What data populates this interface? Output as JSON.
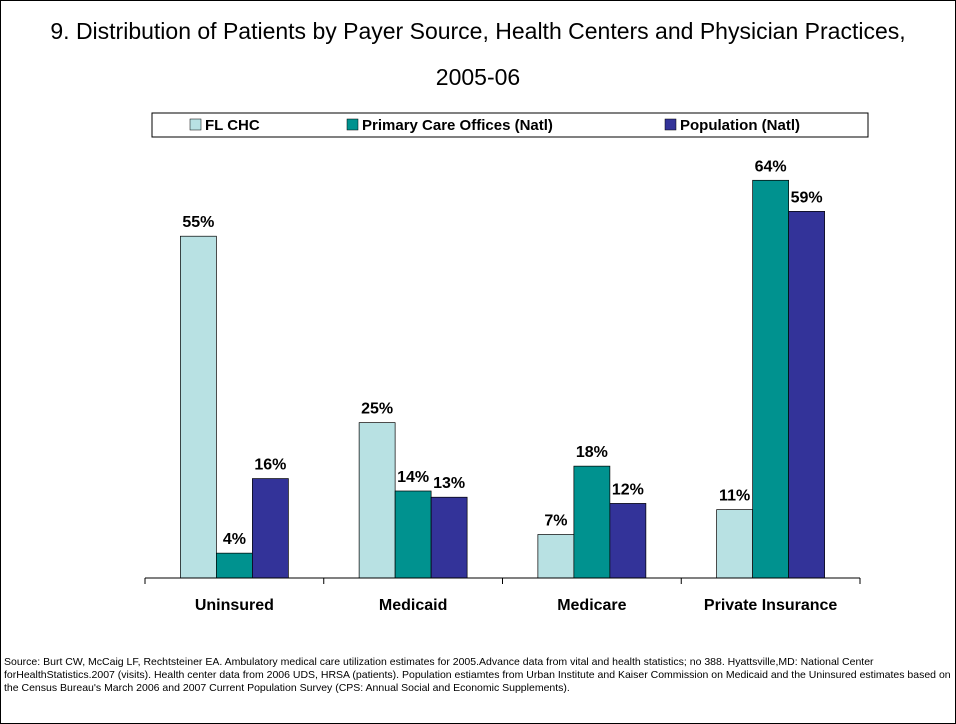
{
  "chart_data": {
    "type": "bar",
    "title": "9. Distribution of Patients by Payer Source, Health Centers and Physician Practices, 2005-06",
    "categories": [
      "Uninsured",
      "Medicaid",
      "Medicare",
      "Private Insurance"
    ],
    "series": [
      {
        "name": "FL CHC",
        "color": "#b8e1e3",
        "values": [
          55,
          25,
          7,
          11
        ],
        "value_labels": [
          "55%",
          "25%",
          "7%",
          "11%"
        ]
      },
      {
        "name": "Primary Care Offices (Natl)",
        "color": "#00928f",
        "values": [
          4,
          14,
          18,
          64
        ],
        "value_labels": [
          "4%",
          "14%",
          "18%",
          "64%"
        ]
      },
      {
        "name": "Population (Natl)",
        "color": "#333399",
        "values": [
          16,
          13,
          12,
          59
        ],
        "value_labels": [
          "16%",
          "13%",
          "12%",
          "59%"
        ]
      }
    ],
    "ylim": [
      0,
      70
    ],
    "legend": "top",
    "note": "Source: Burt CW, McCaig LF, Rechtsteiner EA. Ambulatory medical care utilization estimates for 2005.Advance data from vital and health statistics; no 388. Hyattsville,MD: National Center forHealthStatistics.2007 (visits).  Health center data from 2006 UDS, HRSA (patients). Population estiamtes from Urban Institute and Kaiser Commission on Medicaid and the Uninsured estimates based on the Census Bureau's March 2006 and 2007 Current Population Survey (CPS: Annual Social and Economic Supplements)."
  }
}
